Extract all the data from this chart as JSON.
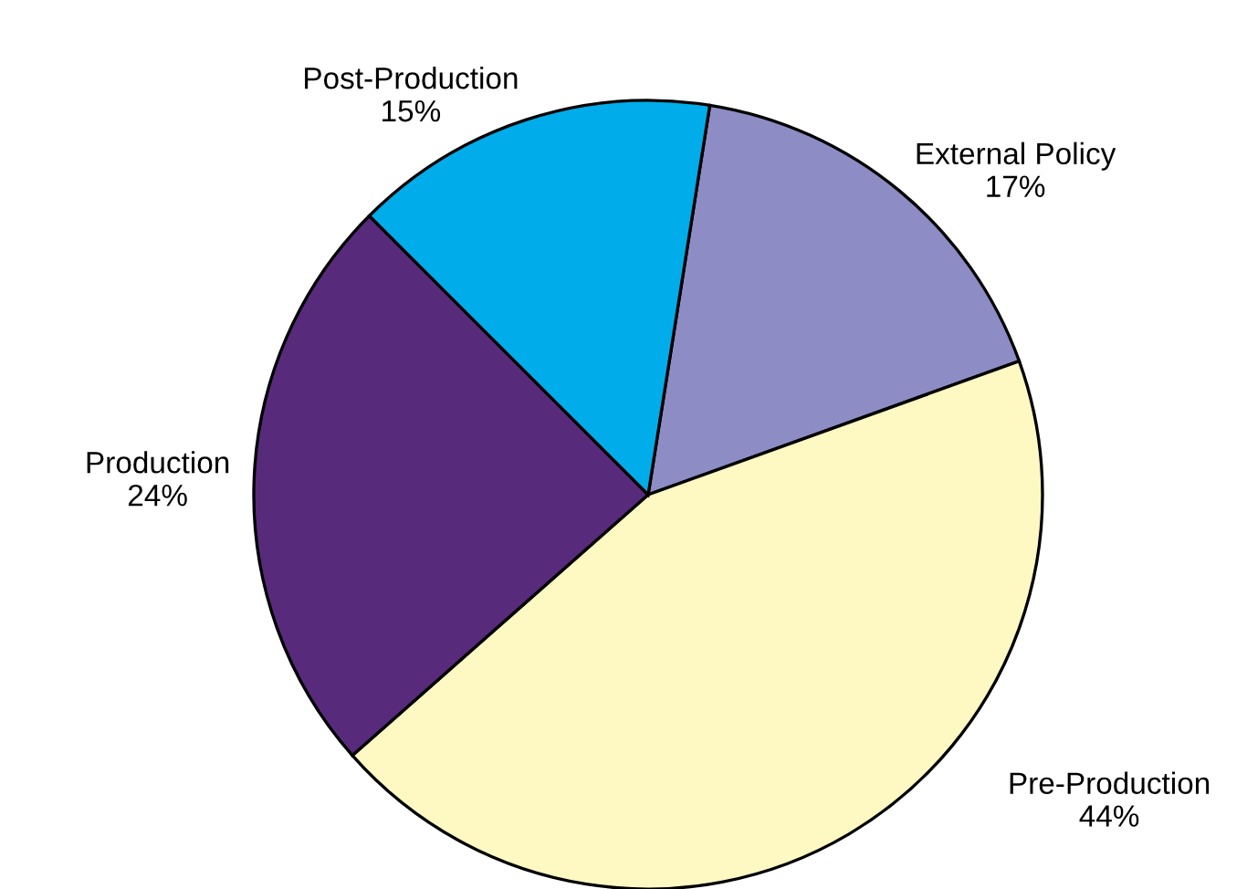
{
  "chart_data": {
    "type": "pie",
    "categories": [
      "External Policy",
      "Pre-Production",
      "Production",
      "Post-Production"
    ],
    "values": [
      17,
      44,
      24,
      15
    ],
    "value_labels": [
      "17%",
      "44%",
      "24%",
      "15%"
    ],
    "colors": [
      "#8e8cc4",
      "#fef8c2",
      "#582a7c",
      "#00adea"
    ]
  }
}
